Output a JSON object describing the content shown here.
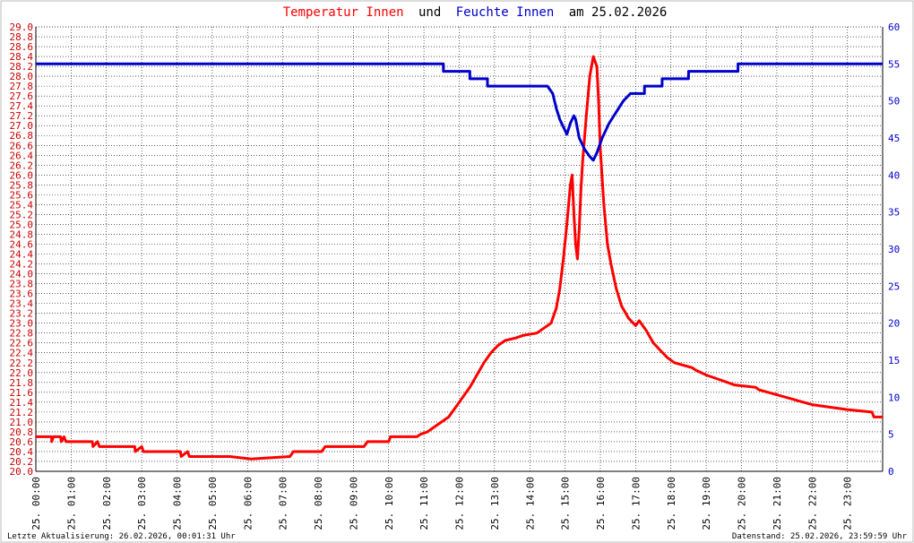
{
  "title_parts": [
    {
      "text": "Temperatur Innen",
      "color": "#ff0000"
    },
    {
      "text": "und",
      "color": "#000000"
    },
    {
      "text": "Feuchte Innen",
      "color": "#0000cc"
    },
    {
      "text": "am 25.02.2026",
      "color": "#000000"
    }
  ],
  "footer": {
    "left": "Letzte Aktualisierung: 26.02.2026, 00:01:31 Uhr",
    "right": "Datenstand: 25.02.2026, 23:59:59 Uhr"
  },
  "chart_data": {
    "type": "line",
    "grid": true,
    "x_unit": "hours",
    "x_range": [
      0,
      24
    ],
    "x_ticks": [
      {
        "h": 0,
        "label": "25. 00:00"
      },
      {
        "h": 1,
        "label": "25. 01:00"
      },
      {
        "h": 2,
        "label": "25. 02:00"
      },
      {
        "h": 3,
        "label": "25. 03:00"
      },
      {
        "h": 4,
        "label": "25. 04:00"
      },
      {
        "h": 5,
        "label": "25. 05:00"
      },
      {
        "h": 6,
        "label": "25. 06:00"
      },
      {
        "h": 7,
        "label": "25. 07:00"
      },
      {
        "h": 8,
        "label": "25. 08:00"
      },
      {
        "h": 9,
        "label": "25. 09:00"
      },
      {
        "h": 10,
        "label": "25. 10:00"
      },
      {
        "h": 11,
        "label": "25. 11:00"
      },
      {
        "h": 12,
        "label": "25. 12:00"
      },
      {
        "h": 13,
        "label": "25. 13:00"
      },
      {
        "h": 14,
        "label": "25. 14:00"
      },
      {
        "h": 15,
        "label": "25. 15:00"
      },
      {
        "h": 16,
        "label": "25. 16:00"
      },
      {
        "h": 17,
        "label": "25. 17:00"
      },
      {
        "h": 18,
        "label": "25. 18:00"
      },
      {
        "h": 19,
        "label": "25. 19:00"
      },
      {
        "h": 20,
        "label": "25. 20:00"
      },
      {
        "h": 21,
        "label": "25. 21:00"
      },
      {
        "h": 22,
        "label": "25. 22:00"
      },
      {
        "h": 23,
        "label": "25. 23:00"
      }
    ],
    "y_left": {
      "range": [
        20.0,
        29.0
      ],
      "color": "#cc0000",
      "ticks": [
        "20.0",
        "20.2",
        "20.4",
        "20.6",
        "20.8",
        "21.0",
        "21.2",
        "21.4",
        "21.6",
        "21.8",
        "22.0",
        "22.2",
        "22.4",
        "22.6",
        "22.8",
        "23.0",
        "23.2",
        "23.4",
        "23.6",
        "23.8",
        "24.0",
        "24.2",
        "24.4",
        "24.6",
        "24.8",
        "25.0",
        "25.2",
        "25.4",
        "25.6",
        "25.8",
        "26.0",
        "26.2",
        "26.4",
        "26.6",
        "26.8",
        "27.0",
        "27.2",
        "27.4",
        "27.6",
        "27.8",
        "28.0",
        "28.2",
        "28.4",
        "28.6",
        "28.8",
        "29.0"
      ]
    },
    "y_right": {
      "range": [
        0,
        60
      ],
      "color": "#0000cc",
      "ticks": [
        "0",
        "5",
        "10",
        "15",
        "20",
        "25",
        "30",
        "35",
        "40",
        "45",
        "50",
        "55",
        "60"
      ]
    },
    "series": [
      {
        "axis": "left",
        "color": "#ff0000",
        "points": [
          [
            0,
            20.7
          ],
          [
            0.45,
            20.7
          ],
          [
            0.45,
            20.6
          ],
          [
            0.5,
            20.7
          ],
          [
            0.7,
            20.7
          ],
          [
            0.72,
            20.6
          ],
          [
            0.8,
            20.7
          ],
          [
            0.85,
            20.6
          ],
          [
            1.6,
            20.6
          ],
          [
            1.62,
            20.5
          ],
          [
            1.75,
            20.6
          ],
          [
            1.8,
            20.5
          ],
          [
            2.8,
            20.5
          ],
          [
            2.82,
            20.4
          ],
          [
            3.0,
            20.5
          ],
          [
            3.05,
            20.4
          ],
          [
            4.1,
            20.4
          ],
          [
            4.12,
            20.3
          ],
          [
            4.3,
            20.4
          ],
          [
            4.35,
            20.3
          ],
          [
            4.5,
            20.3
          ],
          [
            5.5,
            20.3
          ],
          [
            6.1,
            20.25
          ],
          [
            7.2,
            20.3
          ],
          [
            7.3,
            20.4
          ],
          [
            8.1,
            20.4
          ],
          [
            8.2,
            20.5
          ],
          [
            9.3,
            20.5
          ],
          [
            9.4,
            20.6
          ],
          [
            10.0,
            20.6
          ],
          [
            10.05,
            20.7
          ],
          [
            10.8,
            20.7
          ],
          [
            10.9,
            20.75
          ],
          [
            11.1,
            20.8
          ],
          [
            11.3,
            20.9
          ],
          [
            11.5,
            21.0
          ],
          [
            11.7,
            21.1
          ],
          [
            11.9,
            21.3
          ],
          [
            12.1,
            21.5
          ],
          [
            12.3,
            21.7
          ],
          [
            12.5,
            21.95
          ],
          [
            12.7,
            22.2
          ],
          [
            12.9,
            22.4
          ],
          [
            13.1,
            22.55
          ],
          [
            13.3,
            22.65
          ],
          [
            13.6,
            22.7
          ],
          [
            13.8,
            22.75
          ],
          [
            14.2,
            22.8
          ],
          [
            14.4,
            22.9
          ],
          [
            14.6,
            23.0
          ],
          [
            14.75,
            23.3
          ],
          [
            14.85,
            23.7
          ],
          [
            14.95,
            24.3
          ],
          [
            15.05,
            25.0
          ],
          [
            15.15,
            25.8
          ],
          [
            15.2,
            26.0
          ],
          [
            15.25,
            25.2
          ],
          [
            15.3,
            24.6
          ],
          [
            15.35,
            24.3
          ],
          [
            15.4,
            24.9
          ],
          [
            15.45,
            25.7
          ],
          [
            15.5,
            26.3
          ],
          [
            15.6,
            27.2
          ],
          [
            15.7,
            28.0
          ],
          [
            15.8,
            28.4
          ],
          [
            15.9,
            28.2
          ],
          [
            15.95,
            27.5
          ],
          [
            16.0,
            26.5
          ],
          [
            16.1,
            25.4
          ],
          [
            16.2,
            24.6
          ],
          [
            16.3,
            24.2
          ],
          [
            16.45,
            23.7
          ],
          [
            16.6,
            23.35
          ],
          [
            16.8,
            23.1
          ],
          [
            17.0,
            22.95
          ],
          [
            17.1,
            23.05
          ],
          [
            17.3,
            22.85
          ],
          [
            17.5,
            22.6
          ],
          [
            17.7,
            22.45
          ],
          [
            17.9,
            22.3
          ],
          [
            18.1,
            22.2
          ],
          [
            18.6,
            22.1
          ],
          [
            18.7,
            22.05
          ],
          [
            19.0,
            21.95
          ],
          [
            19.4,
            21.85
          ],
          [
            19.8,
            21.75
          ],
          [
            20.4,
            21.7
          ],
          [
            20.5,
            21.65
          ],
          [
            21.0,
            21.55
          ],
          [
            21.5,
            21.45
          ],
          [
            22.0,
            21.35
          ],
          [
            22.5,
            21.3
          ],
          [
            23.0,
            21.25
          ],
          [
            23.7,
            21.2
          ],
          [
            23.75,
            21.1
          ],
          [
            24.0,
            21.1
          ]
        ]
      },
      {
        "axis": "right",
        "color": "#0000cc",
        "points": [
          [
            0,
            55
          ],
          [
            11.55,
            55
          ],
          [
            11.55,
            54
          ],
          [
            12.3,
            54
          ],
          [
            12.3,
            53
          ],
          [
            12.8,
            53
          ],
          [
            12.8,
            52
          ],
          [
            14.5,
            52
          ],
          [
            14.65,
            51
          ],
          [
            14.75,
            49
          ],
          [
            14.85,
            47.5
          ],
          [
            14.95,
            46.5
          ],
          [
            15.05,
            45.5
          ],
          [
            15.15,
            47
          ],
          [
            15.25,
            48
          ],
          [
            15.3,
            47.5
          ],
          [
            15.4,
            45
          ],
          [
            15.55,
            43.5
          ],
          [
            15.7,
            42.5
          ],
          [
            15.8,
            42
          ],
          [
            15.9,
            43
          ],
          [
            16.05,
            45
          ],
          [
            16.25,
            47
          ],
          [
            16.45,
            48.5
          ],
          [
            16.65,
            50
          ],
          [
            16.85,
            51
          ],
          [
            17.25,
            51
          ],
          [
            17.25,
            52
          ],
          [
            17.75,
            52
          ],
          [
            17.75,
            53
          ],
          [
            18.5,
            53
          ],
          [
            18.5,
            54
          ],
          [
            19.9,
            54
          ],
          [
            19.9,
            55
          ],
          [
            24.0,
            55
          ]
        ]
      }
    ]
  }
}
